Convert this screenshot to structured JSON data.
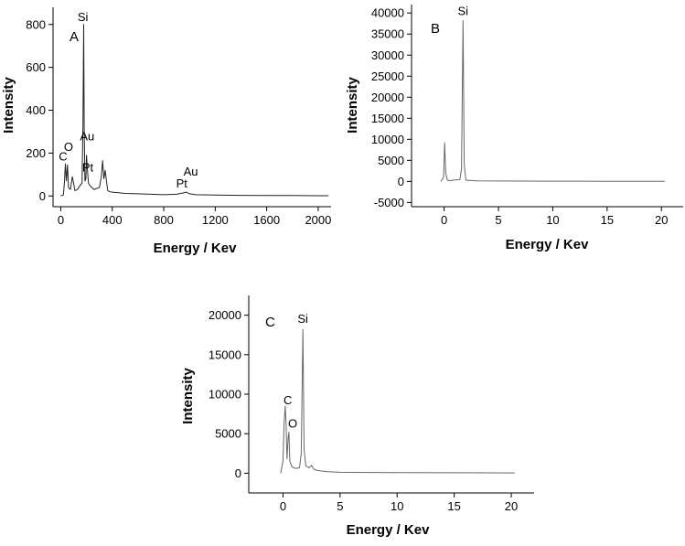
{
  "chart_data": [
    {
      "type": "line",
      "panel_label": "A",
      "xlabel": "Energy / Kev",
      "ylabel": "Intensity",
      "xlim": [
        -60,
        2100
      ],
      "ylim": [
        -50,
        880
      ],
      "xticks": [
        0,
        400,
        800,
        1200,
        1600,
        2000
      ],
      "yticks": [
        0,
        200,
        400,
        600,
        800
      ],
      "color": "#222222",
      "series": [
        {
          "name": "spectrum",
          "x": [
            0,
            20,
            28,
            36,
            44,
            52,
            60,
            75,
            90,
            100,
            110,
            130,
            150,
            165,
            172,
            178,
            182,
            188,
            195,
            200,
            205,
            215,
            225,
            240,
            260,
            280,
            300,
            315,
            325,
            335,
            345,
            355,
            365,
            380,
            400,
            450,
            500,
            600,
            700,
            800,
            900,
            950,
            975,
            1000,
            1050,
            1200,
            1400,
            1600,
            1800,
            2000,
            2080
          ],
          "y": [
            0,
            5,
            60,
            150,
            70,
            145,
            40,
            30,
            90,
            60,
            25,
            30,
            50,
            60,
            330,
            800,
            300,
            70,
            80,
            190,
            140,
            60,
            50,
            40,
            30,
            35,
            40,
            90,
            165,
            80,
            120,
            70,
            25,
            20,
            18,
            15,
            12,
            10,
            8,
            6,
            8,
            14,
            18,
            10,
            6,
            4,
            3,
            2,
            2,
            1,
            1
          ]
        }
      ],
      "annotations": [
        {
          "text": "Si",
          "x": 172,
          "y": 815
        },
        {
          "text": "Au",
          "x": 205,
          "y": 260
        },
        {
          "text": "Pt",
          "x": 210,
          "y": 115
        },
        {
          "text": "O",
          "x": 60,
          "y": 210
        },
        {
          "text": "C",
          "x": 18,
          "y": 165
        },
        {
          "text": "Au",
          "x": 1010,
          "y": 95
        },
        {
          "text": "Pt",
          "x": 940,
          "y": 40
        }
      ]
    },
    {
      "type": "line",
      "panel_label": "B",
      "xlabel": "Energy / Kev",
      "ylabel": "Intensity",
      "xlim": [
        -3,
        22
      ],
      "ylim": [
        -6000,
        42000
      ],
      "xticks": [
        0,
        5,
        10,
        15,
        20
      ],
      "yticks": [
        -5000,
        0,
        5000,
        10000,
        15000,
        20000,
        25000,
        30000,
        35000,
        40000
      ],
      "color": "#666666",
      "series": [
        {
          "name": "spectrum",
          "x": [
            -0.3,
            -0.05,
            0.05,
            0.15,
            0.3,
            0.6,
            1.0,
            1.45,
            1.6,
            1.74,
            1.85,
            2.0,
            3,
            5,
            10,
            15,
            20.3
          ],
          "y": [
            0,
            1000,
            9200,
            2000,
            300,
            200,
            350,
            450,
            3000,
            38200,
            4000,
            300,
            150,
            100,
            60,
            40,
            20
          ]
        }
      ],
      "annotations": [
        {
          "text": "Si",
          "x": 1.74,
          "y": 39500
        }
      ]
    },
    {
      "type": "line",
      "panel_label": "C",
      "xlabel": "Energy / Kev",
      "ylabel": "Intensity",
      "xlim": [
        -3,
        22
      ],
      "ylim": [
        -2500,
        22500
      ],
      "xticks": [
        0,
        5,
        10,
        15,
        20
      ],
      "yticks": [
        0,
        5000,
        10000,
        15000,
        20000
      ],
      "color": "#666666",
      "series": [
        {
          "name": "spectrum",
          "x": [
            -0.2,
            0.0,
            0.1,
            0.2,
            0.28,
            0.35,
            0.45,
            0.52,
            0.6,
            0.8,
            1.1,
            1.45,
            1.6,
            1.74,
            1.85,
            2.0,
            2.3,
            2.5,
            2.7,
            3.0,
            3.5,
            4.0,
            5,
            10,
            15,
            20.3
          ],
          "y": [
            0,
            1500,
            6500,
            8500,
            6000,
            1800,
            4500,
            5200,
            1500,
            800,
            600,
            700,
            2500,
            18200,
            3000,
            900,
            700,
            1000,
            500,
            350,
            250,
            180,
            120,
            80,
            60,
            40
          ]
        }
      ],
      "annotations": [
        {
          "text": "Si",
          "x": 1.74,
          "y": 19000
        },
        {
          "text": "C",
          "x": 0.42,
          "y": 8700
        },
        {
          "text": "O",
          "x": 0.85,
          "y": 5800
        }
      ]
    }
  ]
}
